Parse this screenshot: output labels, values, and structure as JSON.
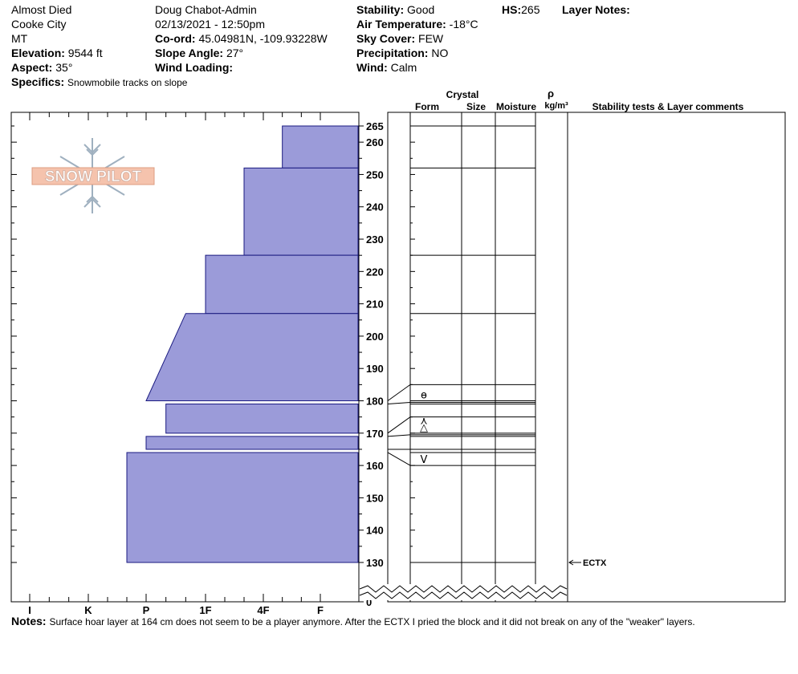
{
  "header": {
    "location_name": "Almost Died",
    "region": "Cooke City",
    "state": "MT",
    "elevation_label": "Elevation:",
    "elevation_value": "9544 ft",
    "aspect_label": "Aspect:",
    "aspect_value": "35°",
    "observer": "Doug Chabot-Admin",
    "datetime": "02/13/2021 - 12:50pm",
    "coord_label": "Co-ord:",
    "coord_value": "45.04981N, -109.93228W",
    "slope_label": "Slope Angle:",
    "slope_value": "27°",
    "wind_loading_label": "Wind Loading:",
    "wind_loading_value": "",
    "stability_label": "Stability:",
    "stability_value": "Good",
    "air_temp_label": "Air Temperature:",
    "air_temp_value": "-18°C",
    "sky_label": "Sky Cover:",
    "sky_value": "FEW",
    "precip_label": "Precipitation:",
    "precip_value": "NO",
    "wind_label": "Wind:",
    "wind_value": "Calm",
    "hs_label": "HS:",
    "hs_value": "265",
    "layer_notes_label": "Layer Notes:",
    "specifics_label": "Specifics:",
    "specifics_value": "Snowmobile tracks on slope"
  },
  "notes": {
    "label": "Notes:",
    "text": "Surface hoar layer at 164 cm does not seem to be a player anymore. After the ECTX I pried the block and it did not break on any of the \"weaker\" layers."
  },
  "logo_text": "SNOW PILOT",
  "colors": {
    "hardness_fill": "#9b9bd9",
    "hardness_stroke": "#1a1a80"
  },
  "column_headers": {
    "crystal": "Crystal",
    "form": "Form",
    "size": "Size",
    "moisture": "Moisture",
    "rho": "ρ",
    "density_unit": "kg/m³",
    "stability": "Stability tests & Layer comments"
  },
  "chart_data": {
    "type": "bar",
    "hardness_scale": [
      "I",
      "K",
      "P",
      "1F",
      "4F",
      "F"
    ],
    "height_ticks": [
      0,
      130,
      140,
      150,
      160,
      170,
      180,
      190,
      200,
      210,
      220,
      230,
      240,
      250,
      260,
      265
    ],
    "height_range": [
      130,
      265
    ],
    "layers": [
      {
        "top": 265,
        "bottom": 252,
        "hardness_top": "4F+",
        "hardness_bottom": "4F+"
      },
      {
        "top": 252,
        "bottom": 225,
        "hardness_top": "4F-",
        "hardness_bottom": "4F-"
      },
      {
        "top": 225,
        "bottom": 207,
        "hardness_top": "1F",
        "hardness_bottom": "1F"
      },
      {
        "top": 207,
        "bottom": 180,
        "hardness_top": "1F-",
        "hardness_bottom": "P"
      },
      {
        "top": 179,
        "bottom": 170,
        "hardness_top": "P+",
        "hardness_bottom": "P+"
      },
      {
        "top": 169,
        "bottom": 165,
        "hardness_top": "P",
        "hardness_bottom": "P"
      },
      {
        "top": 164,
        "bottom": 130,
        "hardness_top": "P-",
        "hardness_bottom": "P-"
      }
    ],
    "grain_symbols": [
      {
        "label": "ɵ",
        "height": 182
      },
      {
        "label": "⋏",
        "height": 174
      },
      {
        "label": "△",
        "height": 172
      },
      {
        "label": "V",
        "height": 162
      }
    ],
    "stability_tests": [
      {
        "label": "ECTX",
        "height": 130
      }
    ]
  }
}
